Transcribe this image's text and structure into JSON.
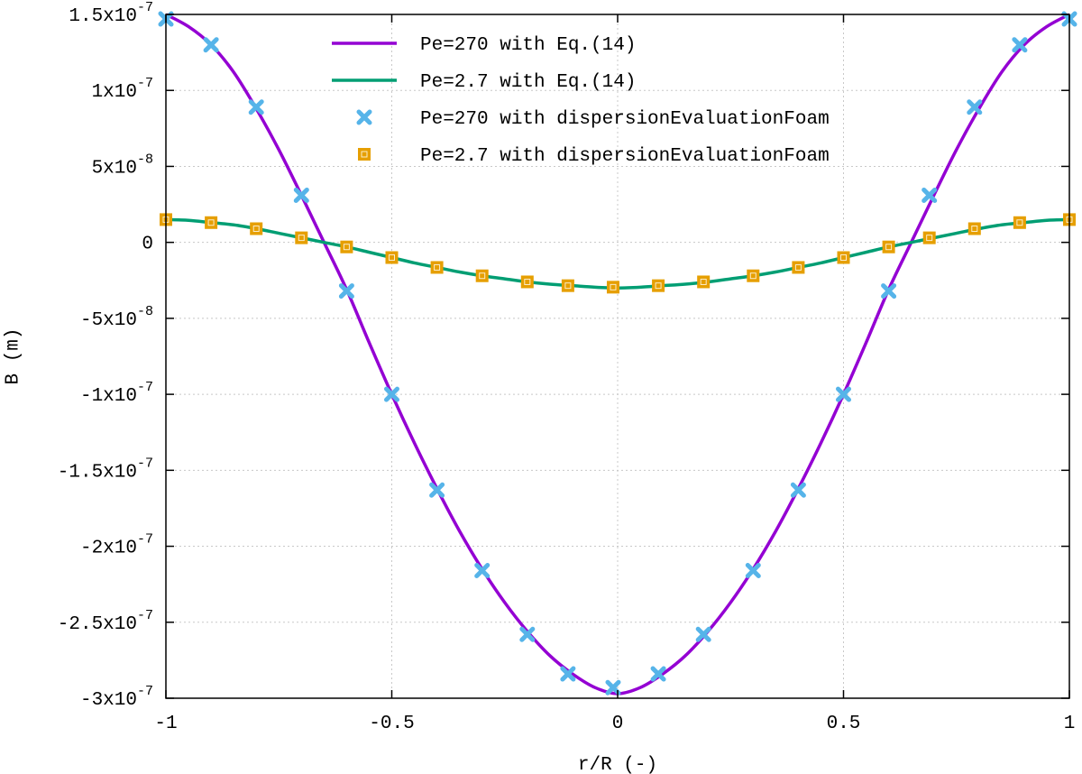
{
  "chart_data": {
    "type": "line",
    "title": "",
    "xlabel": "r/R (-)",
    "ylabel": "B (m)",
    "xlim": [
      -1,
      1
    ],
    "ylim": [
      -3e-07,
      1.5e-07
    ],
    "grid": true,
    "legend_position": "top-center",
    "x_ticks": [
      {
        "value": -1,
        "label": "-1"
      },
      {
        "value": -0.5,
        "label": "-0.5"
      },
      {
        "value": 0,
        "label": "0"
      },
      {
        "value": 0.5,
        "label": "0.5"
      },
      {
        "value": 1,
        "label": "1"
      }
    ],
    "y_ticks": [
      {
        "value": 1.5e-07,
        "mant": "1.5x10",
        "exp": "-7"
      },
      {
        "value": 1e-07,
        "mant": "1x10",
        "exp": "-7"
      },
      {
        "value": 5e-08,
        "mant": "5x10",
        "exp": "-8"
      },
      {
        "value": 0,
        "mant": "0",
        "exp": ""
      },
      {
        "value": -5e-08,
        "mant": "-5x10",
        "exp": "-8"
      },
      {
        "value": -1e-07,
        "mant": "-1x10",
        "exp": "-7"
      },
      {
        "value": -1.5e-07,
        "mant": "-1.5x10",
        "exp": "-7"
      },
      {
        "value": -2e-07,
        "mant": "-2x10",
        "exp": "-7"
      },
      {
        "value": -2.5e-07,
        "mant": "-2.5x10",
        "exp": "-7"
      },
      {
        "value": -3e-07,
        "mant": "-3x10",
        "exp": "-7"
      }
    ],
    "series": [
      {
        "name": "Pe=270 with Eq.(14)",
        "kind": "line",
        "color": "#9400d3",
        "x": [
          -1,
          -0.95,
          -0.9,
          -0.85,
          -0.8,
          -0.75,
          -0.7,
          -0.65,
          -0.6,
          -0.55,
          -0.5,
          -0.45,
          -0.4,
          -0.35,
          -0.3,
          -0.25,
          -0.2,
          -0.15,
          -0.1,
          -0.05,
          0,
          0.05,
          0.1,
          0.15,
          0.2,
          0.25,
          0.3,
          0.35,
          0.4,
          0.45,
          0.5,
          0.55,
          0.6,
          0.65,
          0.7,
          0.75,
          0.8,
          0.85,
          0.9,
          0.95,
          1
        ],
        "y": [
          1.5e-07,
          1.42e-07,
          1.3e-07,
          1.12e-07,
          8.8e-08,
          6.1e-08,
          3.1e-08,
          0,
          -3.1e-08,
          -6.6e-08,
          -1e-07,
          -1.32e-07,
          -1.62e-07,
          -1.9e-07,
          -2.15e-07,
          -2.37e-07,
          -2.56e-07,
          -2.72e-07,
          -2.84e-07,
          -2.93e-07,
          -2.97e-07,
          -2.93e-07,
          -2.84e-07,
          -2.72e-07,
          -2.56e-07,
          -2.37e-07,
          -2.15e-07,
          -1.9e-07,
          -1.62e-07,
          -1.32e-07,
          -1e-07,
          -6.6e-08,
          -3.1e-08,
          0,
          3.1e-08,
          6.1e-08,
          8.8e-08,
          1.12e-07,
          1.3e-07,
          1.42e-07,
          1.5e-07
        ]
      },
      {
        "name": "Pe=2.7 with Eq.(14)",
        "kind": "line",
        "color": "#009e73",
        "x": [
          -1,
          -0.95,
          -0.9,
          -0.85,
          -0.8,
          -0.75,
          -0.7,
          -0.65,
          -0.6,
          -0.55,
          -0.5,
          -0.45,
          -0.4,
          -0.35,
          -0.3,
          -0.25,
          -0.2,
          -0.15,
          -0.1,
          -0.05,
          0,
          0.05,
          0.1,
          0.15,
          0.2,
          0.25,
          0.3,
          0.35,
          0.4,
          0.45,
          0.5,
          0.55,
          0.6,
          0.65,
          0.7,
          0.75,
          0.8,
          0.85,
          0.9,
          0.95,
          1
        ],
        "y": [
          1.5e-08,
          1.45e-08,
          1.3e-08,
          1.15e-08,
          9e-09,
          6e-09,
          3e-09,
          0,
          -3e-09,
          -6.5e-09,
          -1e-08,
          -1.35e-08,
          -1.65e-08,
          -1.95e-08,
          -2.2e-08,
          -2.4e-08,
          -2.6e-08,
          -2.75e-08,
          -2.85e-08,
          -2.95e-08,
          -3e-08,
          -2.95e-08,
          -2.85e-08,
          -2.75e-08,
          -2.6e-08,
          -2.4e-08,
          -2.2e-08,
          -1.95e-08,
          -1.65e-08,
          -1.35e-08,
          -1e-08,
          -6.5e-09,
          -3e-09,
          0,
          3e-09,
          6e-09,
          9e-09,
          1.15e-08,
          1.3e-08,
          1.45e-08,
          1.5e-08
        ]
      },
      {
        "name": "Pe=270 with dispersionEvaluationFoam",
        "kind": "cross",
        "color": "#56b4e9",
        "x": [
          -1,
          -0.9,
          -0.8,
          -0.7,
          -0.6,
          -0.5,
          -0.4,
          -0.3,
          -0.2,
          -0.11,
          -0.01,
          0.09,
          0.19,
          0.3,
          0.4,
          0.5,
          0.6,
          0.69,
          0.79,
          0.89,
          1
        ],
        "y": [
          1.47e-07,
          1.3e-07,
          8.9e-08,
          3.1e-08,
          -3.2e-08,
          -1e-07,
          -1.63e-07,
          -2.16e-07,
          -2.58e-07,
          -2.84e-07,
          -2.93e-07,
          -2.84e-07,
          -2.58e-07,
          -2.16e-07,
          -1.63e-07,
          -1e-07,
          -3.2e-08,
          3.1e-08,
          8.9e-08,
          1.3e-07,
          1.47e-07
        ]
      },
      {
        "name": "Pe=2.7 with dispersionEvaluationFoam",
        "kind": "square",
        "color": "#e69f00",
        "x": [
          -1,
          -0.9,
          -0.8,
          -0.7,
          -0.6,
          -0.5,
          -0.4,
          -0.3,
          -0.2,
          -0.11,
          -0.01,
          0.09,
          0.19,
          0.3,
          0.4,
          0.5,
          0.6,
          0.69,
          0.79,
          0.89,
          1
        ],
        "y": [
          1.5e-08,
          1.3e-08,
          9e-09,
          3e-09,
          -3e-09,
          -1e-08,
          -1.65e-08,
          -2.2e-08,
          -2.6e-08,
          -2.85e-08,
          -2.95e-08,
          -2.85e-08,
          -2.6e-08,
          -2.2e-08,
          -1.65e-08,
          -1e-08,
          -3e-09,
          3e-09,
          9e-09,
          1.3e-08,
          1.5e-08
        ]
      }
    ]
  }
}
